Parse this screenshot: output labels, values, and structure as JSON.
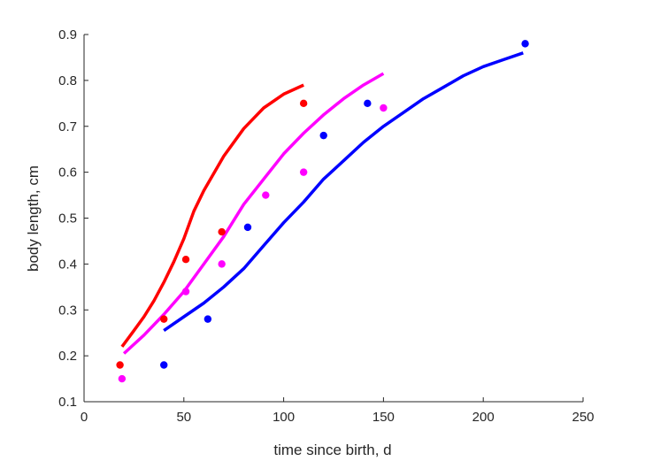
{
  "chart_data": {
    "type": "scatter",
    "xlabel": "time since birth, d",
    "ylabel": "body length, cm",
    "xlim": [
      0,
      250
    ],
    "ylim": [
      0.1,
      0.9
    ],
    "xticks": [
      0,
      50,
      100,
      150,
      200,
      250
    ],
    "yticks": [
      0.1,
      0.2,
      0.3,
      0.4,
      0.5,
      0.6,
      0.7,
      0.8,
      0.9
    ],
    "xtick_labels": [
      "0",
      "50",
      "100",
      "150",
      "200",
      "250"
    ],
    "ytick_labels": [
      "0.1",
      "0.2",
      "0.3",
      "0.4",
      "0.5",
      "0.6",
      "0.7",
      "0.8",
      "0.9"
    ],
    "grid": false,
    "series": [
      {
        "color": "#ff0000",
        "points": {
          "x": [
            18,
            40,
            51,
            69,
            110
          ],
          "y": [
            0.18,
            0.28,
            0.41,
            0.47,
            0.75
          ]
        },
        "curve": {
          "x": [
            19,
            25,
            30,
            35,
            40,
            45,
            50,
            55,
            60,
            70,
            80,
            90,
            100,
            110
          ],
          "y": [
            0.22,
            0.255,
            0.285,
            0.32,
            0.36,
            0.405,
            0.455,
            0.515,
            0.56,
            0.635,
            0.695,
            0.74,
            0.77,
            0.79
          ]
        }
      },
      {
        "color": "#ff00ff",
        "points": {
          "x": [
            19,
            51,
            69,
            91,
            110,
            150
          ],
          "y": [
            0.15,
            0.34,
            0.4,
            0.55,
            0.6,
            0.74
          ]
        },
        "curve": {
          "x": [
            20,
            30,
            40,
            50,
            60,
            70,
            80,
            90,
            100,
            110,
            120,
            130,
            140,
            150
          ],
          "y": [
            0.205,
            0.245,
            0.29,
            0.34,
            0.4,
            0.46,
            0.53,
            0.585,
            0.64,
            0.685,
            0.725,
            0.76,
            0.79,
            0.815
          ]
        }
      },
      {
        "color": "#0000ff",
        "points": {
          "x": [
            40,
            62,
            82,
            120,
            142,
            221
          ],
          "y": [
            0.18,
            0.28,
            0.48,
            0.68,
            0.75,
            0.88
          ]
        },
        "curve": {
          "x": [
            40,
            50,
            60,
            70,
            80,
            90,
            100,
            110,
            120,
            130,
            140,
            150,
            160,
            170,
            180,
            190,
            200,
            210,
            220
          ],
          "y": [
            0.255,
            0.285,
            0.315,
            0.35,
            0.39,
            0.44,
            0.49,
            0.535,
            0.585,
            0.625,
            0.665,
            0.7,
            0.73,
            0.76,
            0.785,
            0.81,
            0.83,
            0.845,
            0.86
          ]
        }
      }
    ]
  }
}
